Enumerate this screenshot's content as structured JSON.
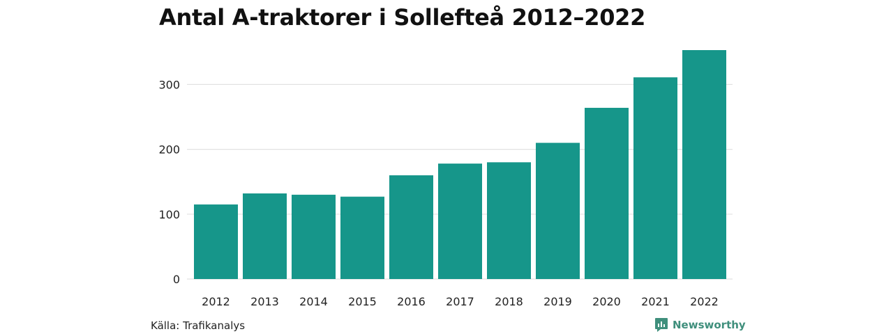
{
  "chart_data": {
    "type": "bar",
    "title": "Antal A-traktorer i Sollefteå 2012–2022",
    "categories": [
      "2012",
      "2013",
      "2014",
      "2015",
      "2016",
      "2017",
      "2018",
      "2019",
      "2020",
      "2021",
      "2022"
    ],
    "values": [
      115,
      132,
      130,
      127,
      160,
      178,
      180,
      210,
      264,
      311,
      353
    ],
    "yticks": [
      0,
      100,
      200,
      300
    ],
    "ylim": [
      0,
      353
    ],
    "xlabel": "",
    "ylabel": "",
    "grid": true,
    "colors": {
      "bar": "#16968a",
      "grid": "#e2e2e2"
    }
  },
  "footer": {
    "source": "Källa: Trafikanalys",
    "brand": "Newsworthy",
    "brand_icon": "newsworthy-logo-icon"
  }
}
